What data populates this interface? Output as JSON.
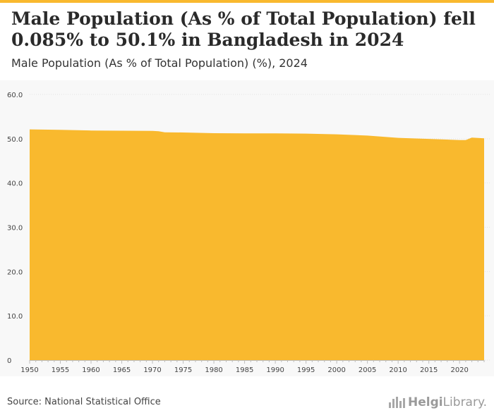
{
  "title": "Male Population (As % of Total Population) fell 0.085% to 50.1% in Bangladesh in 2024",
  "subtitle": "Male Population (As % of Total Population) (%), 2024",
  "source": "Source: National Statistical Office",
  "logo": {
    "bold": "Helgi",
    "regular": "Library."
  },
  "colors": {
    "accent": "#f9b92e",
    "grid": "#e4e4e4",
    "text": "#333333"
  },
  "chart_data": {
    "type": "area",
    "title": "Male Population (As % of Total Population) fell 0.085% to 50.1% in Bangladesh in 2024",
    "subtitle": "Male Population (As % of Total Population) (%), 2024",
    "xlabel": "",
    "ylabel": "",
    "ylim": [
      0,
      60
    ],
    "xlim": [
      1950,
      2024
    ],
    "y_ticks": [
      "0",
      "10.0",
      "20.0",
      "30.0",
      "40.0",
      "50.0",
      "60.0"
    ],
    "y_tick_values": [
      0,
      10,
      20,
      30,
      40,
      50,
      60
    ],
    "x_ticks": [
      "1950",
      "1955",
      "1960",
      "1965",
      "1970",
      "1975",
      "1980",
      "1985",
      "1990",
      "1995",
      "2000",
      "2005",
      "2010",
      "2015",
      "2020"
    ],
    "x_tick_values": [
      1950,
      1955,
      1960,
      1965,
      1970,
      1975,
      1980,
      1985,
      1990,
      1995,
      2000,
      2005,
      2010,
      2015,
      2020
    ],
    "grid": true,
    "series": [
      {
        "color": "#f9b92e",
        "x": [
          1950,
          1955,
          1960,
          1965,
          1970,
          1971,
          1972,
          1975,
          1980,
          1985,
          1990,
          1995,
          2000,
          2005,
          2010,
          2015,
          2020,
          2021,
          2022,
          2023,
          2024
        ],
        "values": [
          52.1,
          52.0,
          51.85,
          51.8,
          51.75,
          51.7,
          51.45,
          51.4,
          51.25,
          51.2,
          51.2,
          51.15,
          51.0,
          50.7,
          50.2,
          49.95,
          49.7,
          49.7,
          50.25,
          50.18,
          50.1
        ]
      }
    ]
  }
}
